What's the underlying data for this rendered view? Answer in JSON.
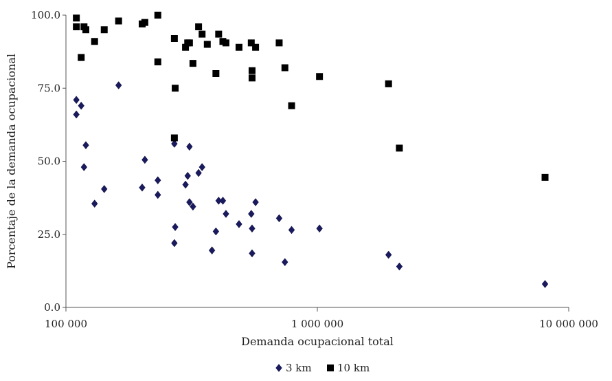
{
  "chart_data": {
    "type": "scatter",
    "title": "",
    "xlabel": "Demanda ocupacional total",
    "ylabel": "Porcentaje de la demanda ocupacional",
    "x_scale": "log",
    "xlim": [
      100000,
      10000000
    ],
    "ylim": [
      0,
      100
    ],
    "x_ticks": [
      100000,
      1000000,
      10000000
    ],
    "x_tick_labels": [
      "100 000",
      "1 000 000",
      "10 000 000"
    ],
    "y_ticks": [
      0,
      25,
      50,
      75,
      100
    ],
    "y_tick_labels": [
      "0.0",
      "25.0",
      "50.0",
      "75.0",
      "100.0"
    ],
    "grid": false,
    "legend_position": "bottom",
    "series": [
      {
        "name": "3 km",
        "marker": "diamond",
        "color": "#1a1a5e",
        "points": [
          [
            110000,
            71
          ],
          [
            110000,
            66
          ],
          [
            115000,
            69
          ],
          [
            118000,
            48
          ],
          [
            120000,
            55.5
          ],
          [
            130000,
            35.5
          ],
          [
            142000,
            40.5
          ],
          [
            162000,
            76
          ],
          [
            201000,
            41
          ],
          [
            206000,
            50.5
          ],
          [
            232000,
            43.5
          ],
          [
            232000,
            38.5
          ],
          [
            270000,
            56
          ],
          [
            270000,
            22
          ],
          [
            272000,
            27.5
          ],
          [
            299000,
            42
          ],
          [
            305000,
            45
          ],
          [
            310000,
            55
          ],
          [
            310000,
            36
          ],
          [
            320000,
            34.5
          ],
          [
            337000,
            46
          ],
          [
            348000,
            48
          ],
          [
            381000,
            19.5
          ],
          [
            395000,
            26
          ],
          [
            405000,
            36.5
          ],
          [
            421000,
            36.5
          ],
          [
            433000,
            32
          ],
          [
            488000,
            28.5
          ],
          [
            546000,
            32
          ],
          [
            550000,
            27
          ],
          [
            550000,
            18.5
          ],
          [
            568000,
            36
          ],
          [
            705000,
            30.5
          ],
          [
            743000,
            15.5
          ],
          [
            790000,
            26.5
          ],
          [
            1020000,
            27
          ],
          [
            1920000,
            18
          ],
          [
            2120000,
            14
          ],
          [
            8050000,
            8
          ]
        ]
      },
      {
        "name": "10 km",
        "marker": "square",
        "color": "#000000",
        "points": [
          [
            110000,
            99
          ],
          [
            110000,
            96
          ],
          [
            115000,
            85.5
          ],
          [
            118000,
            96
          ],
          [
            120000,
            95
          ],
          [
            130000,
            91
          ],
          [
            142000,
            95
          ],
          [
            162000,
            98
          ],
          [
            201000,
            97
          ],
          [
            206000,
            97.5
          ],
          [
            232000,
            100
          ],
          [
            232000,
            84
          ],
          [
            270000,
            58
          ],
          [
            270000,
            92
          ],
          [
            272000,
            75
          ],
          [
            299000,
            89
          ],
          [
            305000,
            90.5
          ],
          [
            310000,
            90.5
          ],
          [
            320000,
            83.5
          ],
          [
            337000,
            96
          ],
          [
            348000,
            93.5
          ],
          [
            365000,
            90
          ],
          [
            395000,
            80
          ],
          [
            405000,
            93.5
          ],
          [
            421000,
            91
          ],
          [
            433000,
            90.5
          ],
          [
            488000,
            89
          ],
          [
            546000,
            90.5
          ],
          [
            550000,
            81
          ],
          [
            550000,
            78.5
          ],
          [
            568000,
            89
          ],
          [
            705000,
            90.5
          ],
          [
            743000,
            82
          ],
          [
            790000,
            69
          ],
          [
            1020000,
            79
          ],
          [
            1920000,
            76.5
          ],
          [
            2120000,
            54.5
          ],
          [
            8050000,
            44.5
          ]
        ]
      }
    ]
  }
}
